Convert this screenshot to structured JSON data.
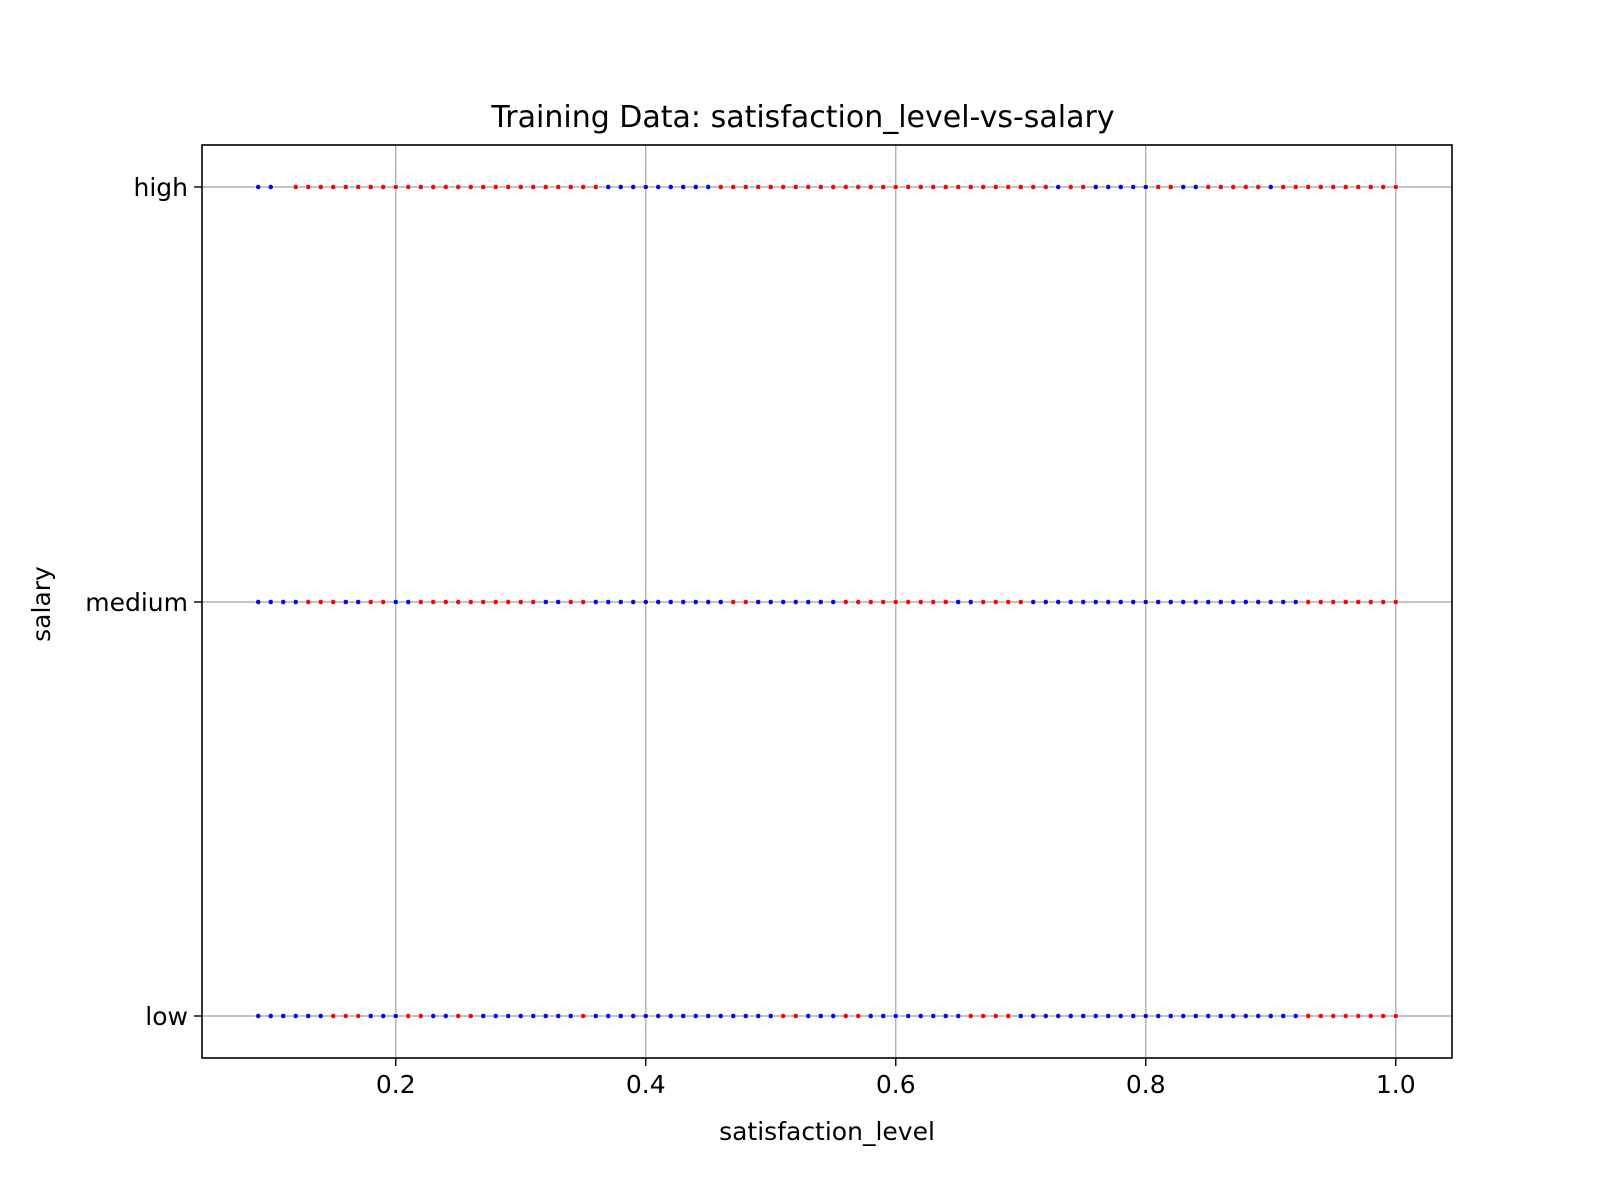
{
  "chart_data": {
    "type": "scatter",
    "title": "Training Data: satisfaction_level-vs-salary",
    "xlabel": "satisfaction_level",
    "ylabel": "salary",
    "xlim": [
      0.045,
      1.045
    ],
    "x_ticks": [
      0.2,
      0.4,
      0.6,
      0.8,
      1.0
    ],
    "x_tick_labels": [
      "0.2",
      "0.4",
      "0.6",
      "0.8",
      "1.0"
    ],
    "categories": [
      "low",
      "medium",
      "high"
    ],
    "grid": true,
    "legend": "none",
    "colors": {
      "blue": "#0000ff",
      "red": "#ff0000",
      "grid": "#b0b0b0"
    },
    "x_start": 0.09,
    "x_end": 1.0,
    "x_step": 0.01,
    "series": [
      {
        "category": "high",
        "points": [
          {
            "x_from": 0.09,
            "x_to": 0.1,
            "color": "blue"
          },
          {
            "x_from": 0.12,
            "x_to": 0.36,
            "color": "red"
          },
          {
            "x_from": 0.37,
            "x_to": 0.45,
            "color": "blue"
          },
          {
            "x_from": 0.46,
            "x_to": 0.72,
            "color": "red"
          },
          {
            "x_from": 0.73,
            "x_to": 0.73,
            "color": "blue"
          },
          {
            "x_from": 0.74,
            "x_to": 0.75,
            "color": "red"
          },
          {
            "x_from": 0.76,
            "x_to": 0.8,
            "color": "blue"
          },
          {
            "x_from": 0.81,
            "x_to": 0.82,
            "color": "red"
          },
          {
            "x_from": 0.83,
            "x_to": 0.84,
            "color": "blue"
          },
          {
            "x_from": 0.85,
            "x_to": 0.89,
            "color": "red"
          },
          {
            "x_from": 0.9,
            "x_to": 0.9,
            "color": "blue"
          },
          {
            "x_from": 0.91,
            "x_to": 1.0,
            "color": "red"
          }
        ]
      },
      {
        "category": "medium",
        "points": [
          {
            "x_from": 0.09,
            "x_to": 0.12,
            "color": "blue"
          },
          {
            "x_from": 0.13,
            "x_to": 0.15,
            "color": "red"
          },
          {
            "x_from": 0.16,
            "x_to": 0.17,
            "color": "blue"
          },
          {
            "x_from": 0.18,
            "x_to": 0.19,
            "color": "red"
          },
          {
            "x_from": 0.2,
            "x_to": 0.21,
            "color": "blue"
          },
          {
            "x_from": 0.22,
            "x_to": 0.31,
            "color": "red"
          },
          {
            "x_from": 0.32,
            "x_to": 0.33,
            "color": "blue"
          },
          {
            "x_from": 0.34,
            "x_to": 0.35,
            "color": "red"
          },
          {
            "x_from": 0.36,
            "x_to": 0.46,
            "color": "blue"
          },
          {
            "x_from": 0.47,
            "x_to": 0.48,
            "color": "red"
          },
          {
            "x_from": 0.49,
            "x_to": 0.55,
            "color": "blue"
          },
          {
            "x_from": 0.56,
            "x_to": 0.64,
            "color": "red"
          },
          {
            "x_from": 0.65,
            "x_to": 0.66,
            "color": "blue"
          },
          {
            "x_from": 0.67,
            "x_to": 0.7,
            "color": "red"
          },
          {
            "x_from": 0.71,
            "x_to": 0.92,
            "color": "blue"
          },
          {
            "x_from": 0.93,
            "x_to": 1.0,
            "color": "red"
          }
        ]
      },
      {
        "category": "low",
        "points": [
          {
            "x_from": 0.09,
            "x_to": 0.14,
            "color": "blue"
          },
          {
            "x_from": 0.15,
            "x_to": 0.17,
            "color": "red"
          },
          {
            "x_from": 0.18,
            "x_to": 0.2,
            "color": "blue"
          },
          {
            "x_from": 0.21,
            "x_to": 0.22,
            "color": "red"
          },
          {
            "x_from": 0.23,
            "x_to": 0.24,
            "color": "blue"
          },
          {
            "x_from": 0.25,
            "x_to": 0.26,
            "color": "red"
          },
          {
            "x_from": 0.27,
            "x_to": 0.34,
            "color": "blue"
          },
          {
            "x_from": 0.35,
            "x_to": 0.35,
            "color": "red"
          },
          {
            "x_from": 0.36,
            "x_to": 0.5,
            "color": "blue"
          },
          {
            "x_from": 0.51,
            "x_to": 0.52,
            "color": "red"
          },
          {
            "x_from": 0.53,
            "x_to": 0.55,
            "color": "blue"
          },
          {
            "x_from": 0.56,
            "x_to": 0.57,
            "color": "red"
          },
          {
            "x_from": 0.58,
            "x_to": 0.65,
            "color": "blue"
          },
          {
            "x_from": 0.66,
            "x_to": 0.69,
            "color": "red"
          },
          {
            "x_from": 0.7,
            "x_to": 0.92,
            "color": "blue"
          },
          {
            "x_from": 0.93,
            "x_to": 1.0,
            "color": "red"
          }
        ]
      }
    ]
  }
}
